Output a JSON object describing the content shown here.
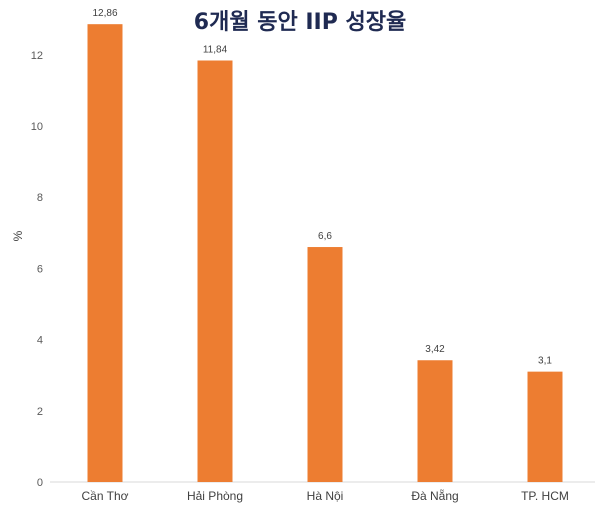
{
  "chart_data": {
    "type": "bar",
    "title": "6개월 동안 IIP 성장율",
    "ylabel": "%",
    "xlabel": "",
    "categories": [
      "Cần Thơ",
      "Hải Phòng",
      "Hà Nội",
      "Đà Nẵng",
      "TP. HCM"
    ],
    "values": [
      12.86,
      11.84,
      6.6,
      3.42,
      3.1
    ],
    "data_labels": [
      "12,86",
      "11,84",
      "6,6",
      "3,42",
      "3,1"
    ],
    "yticks": [
      0,
      2,
      4,
      6,
      8,
      10,
      12
    ],
    "ylim": [
      0,
      13
    ],
    "grid": false,
    "legend": "none",
    "bar_color": "#ED7D31"
  }
}
